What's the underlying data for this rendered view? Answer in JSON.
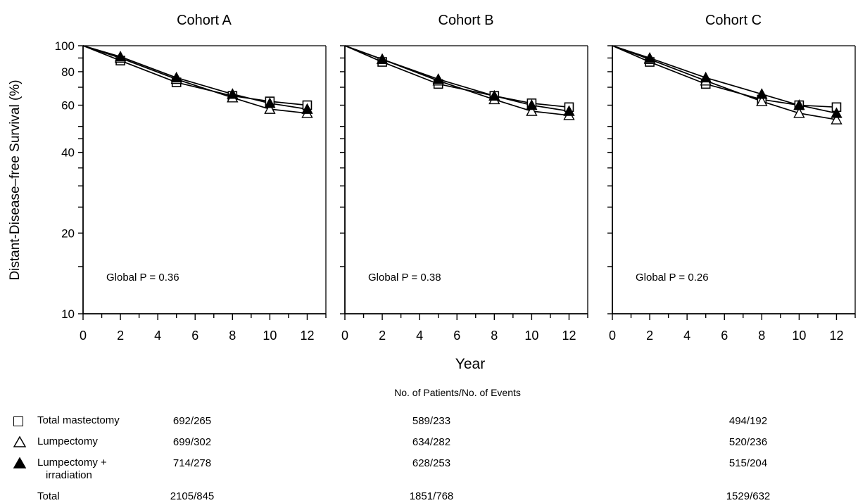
{
  "chart_data": {
    "type": "line",
    "ylabel": "Distant-Disease–free Survival (%)",
    "xlabel": "Year",
    "yscale": "log",
    "ylim": [
      10,
      100
    ],
    "xlim": [
      0,
      13
    ],
    "yticks": [
      10,
      20,
      40,
      60,
      80,
      100
    ],
    "xticks": [
      0,
      2,
      4,
      6,
      8,
      10,
      12
    ],
    "panels": [
      {
        "title": "Cohort A",
        "annotation": "Global P = 0.36",
        "series": [
          {
            "name": "Total mastectomy",
            "marker": "open-square",
            "x": [
              0,
              2,
              5,
              8,
              10,
              12
            ],
            "y": [
              100,
              88,
              73,
              65,
              62,
              60
            ]
          },
          {
            "name": "Lumpectomy",
            "marker": "open-triangle",
            "x": [
              0,
              2,
              5,
              8,
              10,
              12
            ],
            "y": [
              100,
              90,
              75,
              64,
              58,
              56
            ]
          },
          {
            "name": "Lumpectomy + irradiation",
            "marker": "filled-triangle",
            "x": [
              0,
              2,
              5,
              8,
              10,
              12
            ],
            "y": [
              100,
              91,
              76,
              66,
              61,
              58
            ]
          }
        ]
      },
      {
        "title": "Cohort B",
        "annotation": "Global P = 0.38",
        "series": [
          {
            "name": "Total mastectomy",
            "marker": "open-square",
            "x": [
              0,
              2,
              5,
              8,
              10,
              12
            ],
            "y": [
              100,
              87,
              72,
              65,
              61,
              59
            ]
          },
          {
            "name": "Lumpectomy",
            "marker": "open-triangle",
            "x": [
              0,
              2,
              5,
              8,
              10,
              12
            ],
            "y": [
              100,
              89,
              74,
              63,
              57,
              55
            ]
          },
          {
            "name": "Lumpectomy + irradiation",
            "marker": "filled-triangle",
            "x": [
              0,
              2,
              5,
              8,
              10,
              12
            ],
            "y": [
              100,
              89,
              75,
              65,
              60,
              57
            ]
          }
        ]
      },
      {
        "title": "Cohort C",
        "annotation": "Global P = 0.26",
        "series": [
          {
            "name": "Total mastectomy",
            "marker": "open-square",
            "x": [
              0,
              2,
              5,
              8,
              10,
              12
            ],
            "y": [
              100,
              87,
              72,
              63,
              60,
              59
            ]
          },
          {
            "name": "Lumpectomy",
            "marker": "open-triangle",
            "x": [
              0,
              2,
              5,
              8,
              10,
              12
            ],
            "y": [
              100,
              89,
              74,
              62,
              56,
              53
            ]
          },
          {
            "name": "Lumpectomy + irradiation",
            "marker": "filled-triangle",
            "x": [
              0,
              2,
              5,
              8,
              10,
              12
            ],
            "y": [
              100,
              90,
              76,
              66,
              60,
              56
            ]
          }
        ]
      }
    ]
  },
  "table": {
    "title": "No. of Patients/No. of Events",
    "rows": [
      {
        "label": "Total mastectomy",
        "label_line2": "",
        "symbol": "□",
        "a": "692/265",
        "b": "589/233",
        "c": "494/192"
      },
      {
        "label": "Lumpectomy",
        "label_line2": "",
        "symbol": "△",
        "a": "699/302",
        "b": "634/282",
        "c": "520/236"
      },
      {
        "label": "Lumpectomy +",
        "label_line2": "irradiation",
        "symbol": "▲",
        "a": "714/278",
        "b": "628/253",
        "c": "515/204"
      },
      {
        "label": "Total",
        "label_line2": "",
        "symbol": "",
        "a": "2105/845",
        "b": "1851/768",
        "c": "1529/632"
      }
    ]
  }
}
